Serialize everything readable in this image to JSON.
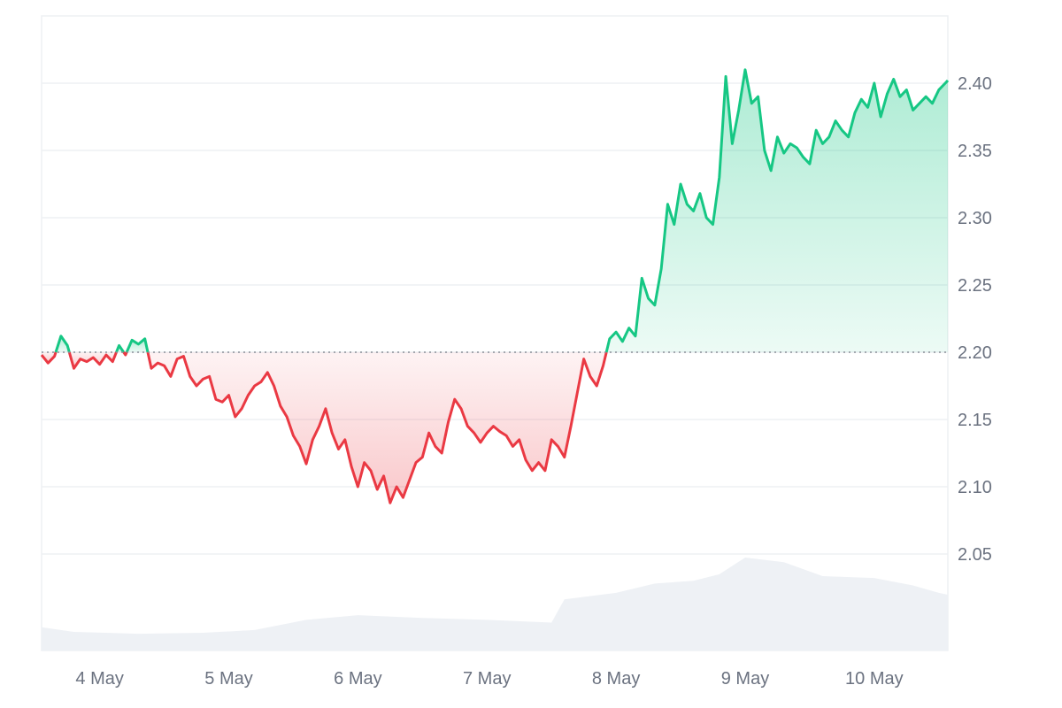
{
  "chart_data": {
    "type": "area",
    "baseline": 2.2,
    "ylim": [
      2.0,
      2.45
    ],
    "y_ticks": [
      "2.05",
      "2.10",
      "2.15",
      "2.20",
      "2.25",
      "2.30",
      "2.35",
      "2.40"
    ],
    "y_tick_values": [
      2.05,
      2.1,
      2.15,
      2.2,
      2.25,
      2.3,
      2.35,
      2.4
    ],
    "x_ticks": [
      "4 May",
      "5 May",
      "6 May",
      "7 May",
      "8 May",
      "9 May",
      "10 May"
    ],
    "x_tick_days": [
      4,
      5,
      6,
      7,
      8,
      9,
      10
    ],
    "xlim_days": [
      3.55,
      10.57
    ],
    "colors": {
      "up": "#16c784",
      "down": "#ea3943",
      "grid": "#eef0f3",
      "volume": "#eef1f5",
      "axis_text": "#6b7280"
    },
    "price_series": [
      [
        3.55,
        2.198
      ],
      [
        3.6,
        2.192
      ],
      [
        3.65,
        2.197
      ],
      [
        3.7,
        2.212
      ],
      [
        3.75,
        2.205
      ],
      [
        3.8,
        2.188
      ],
      [
        3.85,
        2.195
      ],
      [
        3.9,
        2.193
      ],
      [
        3.95,
        2.196
      ],
      [
        4.0,
        2.191
      ],
      [
        4.05,
        2.198
      ],
      [
        4.1,
        2.193
      ],
      [
        4.15,
        2.205
      ],
      [
        4.2,
        2.198
      ],
      [
        4.25,
        2.209
      ],
      [
        4.3,
        2.206
      ],
      [
        4.35,
        2.21
      ],
      [
        4.4,
        2.188
      ],
      [
        4.45,
        2.192
      ],
      [
        4.5,
        2.19
      ],
      [
        4.55,
        2.182
      ],
      [
        4.6,
        2.195
      ],
      [
        4.65,
        2.197
      ],
      [
        4.7,
        2.182
      ],
      [
        4.75,
        2.175
      ],
      [
        4.8,
        2.18
      ],
      [
        4.85,
        2.182
      ],
      [
        4.9,
        2.165
      ],
      [
        4.95,
        2.163
      ],
      [
        5.0,
        2.168
      ],
      [
        5.05,
        2.152
      ],
      [
        5.1,
        2.158
      ],
      [
        5.15,
        2.168
      ],
      [
        5.2,
        2.175
      ],
      [
        5.25,
        2.178
      ],
      [
        5.3,
        2.185
      ],
      [
        5.35,
        2.175
      ],
      [
        5.4,
        2.16
      ],
      [
        5.45,
        2.152
      ],
      [
        5.5,
        2.138
      ],
      [
        5.55,
        2.13
      ],
      [
        5.6,
        2.117
      ],
      [
        5.65,
        2.135
      ],
      [
        5.7,
        2.145
      ],
      [
        5.75,
        2.158
      ],
      [
        5.8,
        2.14
      ],
      [
        5.85,
        2.128
      ],
      [
        5.9,
        2.135
      ],
      [
        5.95,
        2.115
      ],
      [
        6.0,
        2.1
      ],
      [
        6.05,
        2.118
      ],
      [
        6.1,
        2.112
      ],
      [
        6.15,
        2.098
      ],
      [
        6.2,
        2.108
      ],
      [
        6.25,
        2.088
      ],
      [
        6.3,
        2.1
      ],
      [
        6.35,
        2.092
      ],
      [
        6.4,
        2.105
      ],
      [
        6.45,
        2.118
      ],
      [
        6.5,
        2.122
      ],
      [
        6.55,
        2.14
      ],
      [
        6.6,
        2.13
      ],
      [
        6.65,
        2.125
      ],
      [
        6.7,
        2.148
      ],
      [
        6.75,
        2.165
      ],
      [
        6.8,
        2.158
      ],
      [
        6.85,
        2.145
      ],
      [
        6.9,
        2.14
      ],
      [
        6.95,
        2.133
      ],
      [
        7.0,
        2.14
      ],
      [
        7.05,
        2.145
      ],
      [
        7.1,
        2.141
      ],
      [
        7.15,
        2.138
      ],
      [
        7.2,
        2.13
      ],
      [
        7.25,
        2.135
      ],
      [
        7.3,
        2.12
      ],
      [
        7.35,
        2.112
      ],
      [
        7.4,
        2.118
      ],
      [
        7.45,
        2.112
      ],
      [
        7.5,
        2.135
      ],
      [
        7.55,
        2.13
      ],
      [
        7.6,
        2.122
      ],
      [
        7.65,
        2.145
      ],
      [
        7.7,
        2.17
      ],
      [
        7.75,
        2.195
      ],
      [
        7.8,
        2.182
      ],
      [
        7.85,
        2.175
      ],
      [
        7.9,
        2.19
      ],
      [
        7.95,
        2.21
      ],
      [
        8.0,
        2.215
      ],
      [
        8.05,
        2.208
      ],
      [
        8.1,
        2.218
      ],
      [
        8.15,
        2.212
      ],
      [
        8.2,
        2.255
      ],
      [
        8.25,
        2.24
      ],
      [
        8.3,
        2.235
      ],
      [
        8.35,
        2.262
      ],
      [
        8.4,
        2.31
      ],
      [
        8.45,
        2.295
      ],
      [
        8.5,
        2.325
      ],
      [
        8.55,
        2.31
      ],
      [
        8.6,
        2.305
      ],
      [
        8.65,
        2.318
      ],
      [
        8.7,
        2.3
      ],
      [
        8.75,
        2.295
      ],
      [
        8.8,
        2.33
      ],
      [
        8.85,
        2.405
      ],
      [
        8.9,
        2.355
      ],
      [
        8.95,
        2.38
      ],
      [
        9.0,
        2.41
      ],
      [
        9.05,
        2.385
      ],
      [
        9.1,
        2.39
      ],
      [
        9.15,
        2.35
      ],
      [
        9.2,
        2.335
      ],
      [
        9.25,
        2.36
      ],
      [
        9.3,
        2.348
      ],
      [
        9.35,
        2.355
      ],
      [
        9.4,
        2.352
      ],
      [
        9.45,
        2.345
      ],
      [
        9.5,
        2.34
      ],
      [
        9.55,
        2.365
      ],
      [
        9.6,
        2.355
      ],
      [
        9.65,
        2.36
      ],
      [
        9.7,
        2.372
      ],
      [
        9.75,
        2.365
      ],
      [
        9.8,
        2.36
      ],
      [
        9.85,
        2.378
      ],
      [
        9.9,
        2.388
      ],
      [
        9.95,
        2.382
      ],
      [
        10.0,
        2.4
      ],
      [
        10.05,
        2.375
      ],
      [
        10.1,
        2.392
      ],
      [
        10.15,
        2.403
      ],
      [
        10.2,
        2.39
      ],
      [
        10.25,
        2.395
      ],
      [
        10.3,
        2.38
      ],
      [
        10.35,
        2.385
      ],
      [
        10.4,
        2.39
      ],
      [
        10.45,
        2.385
      ],
      [
        10.5,
        2.395
      ],
      [
        10.55,
        2.4
      ],
      [
        10.57,
        2.402
      ]
    ],
    "volume_series": [
      [
        3.55,
        0.25
      ],
      [
        3.8,
        0.2
      ],
      [
        4.3,
        0.18
      ],
      [
        4.8,
        0.19
      ],
      [
        5.2,
        0.22
      ],
      [
        5.6,
        0.33
      ],
      [
        6.0,
        0.38
      ],
      [
        6.5,
        0.35
      ],
      [
        7.0,
        0.33
      ],
      [
        7.5,
        0.3
      ],
      [
        7.6,
        0.55
      ],
      [
        8.0,
        0.62
      ],
      [
        8.3,
        0.72
      ],
      [
        8.6,
        0.75
      ],
      [
        8.8,
        0.82
      ],
      [
        9.0,
        1.0
      ],
      [
        9.3,
        0.95
      ],
      [
        9.6,
        0.8
      ],
      [
        10.0,
        0.78
      ],
      [
        10.3,
        0.7
      ],
      [
        10.5,
        0.62
      ],
      [
        10.57,
        0.6
      ]
    ]
  }
}
